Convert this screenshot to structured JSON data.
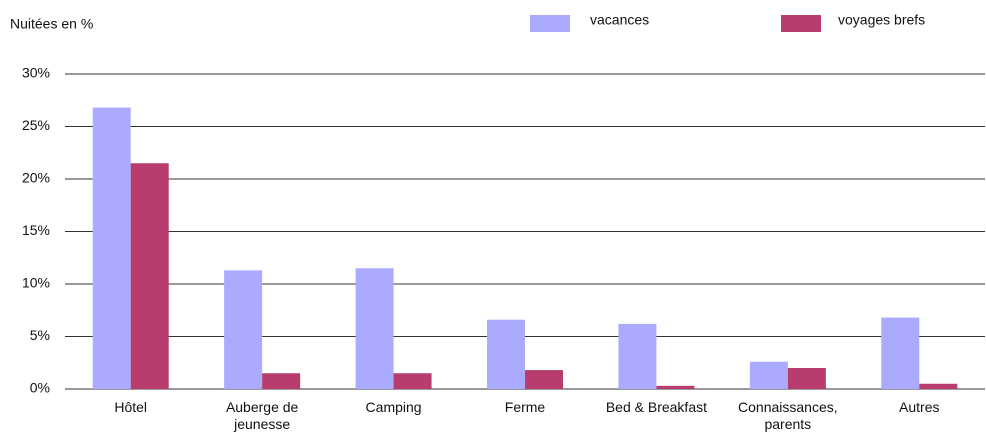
{
  "chart_data": {
    "type": "bar",
    "y_label": "Nuitées en %",
    "categories": [
      "Hôtel",
      "Auberge de jeunesse",
      "Camping",
      "Ferme",
      "Bed & Breakfast",
      "Connaissances, parents",
      "Autres"
    ],
    "series": [
      {
        "name": "vacances",
        "color": "#aaaaff",
        "values": [
          26.8,
          11.3,
          11.5,
          6.6,
          6.2,
          2.6,
          6.8
        ]
      },
      {
        "name": "voyages brefs",
        "color": "#b83c6e",
        "values": [
          21.5,
          1.5,
          1.5,
          1.8,
          0.3,
          2.0,
          0.5
        ]
      }
    ],
    "ylim": [
      0,
      30
    ],
    "yticks": [
      {
        "value": 0,
        "label": "0%"
      },
      {
        "value": 5,
        "label": "5%"
      },
      {
        "value": 10,
        "label": "10%"
      },
      {
        "value": 15,
        "label": "15%"
      },
      {
        "value": 20,
        "label": "20%"
      },
      {
        "value": 25,
        "label": "25%"
      },
      {
        "value": 30,
        "label": "30%"
      }
    ],
    "grid": true
  }
}
